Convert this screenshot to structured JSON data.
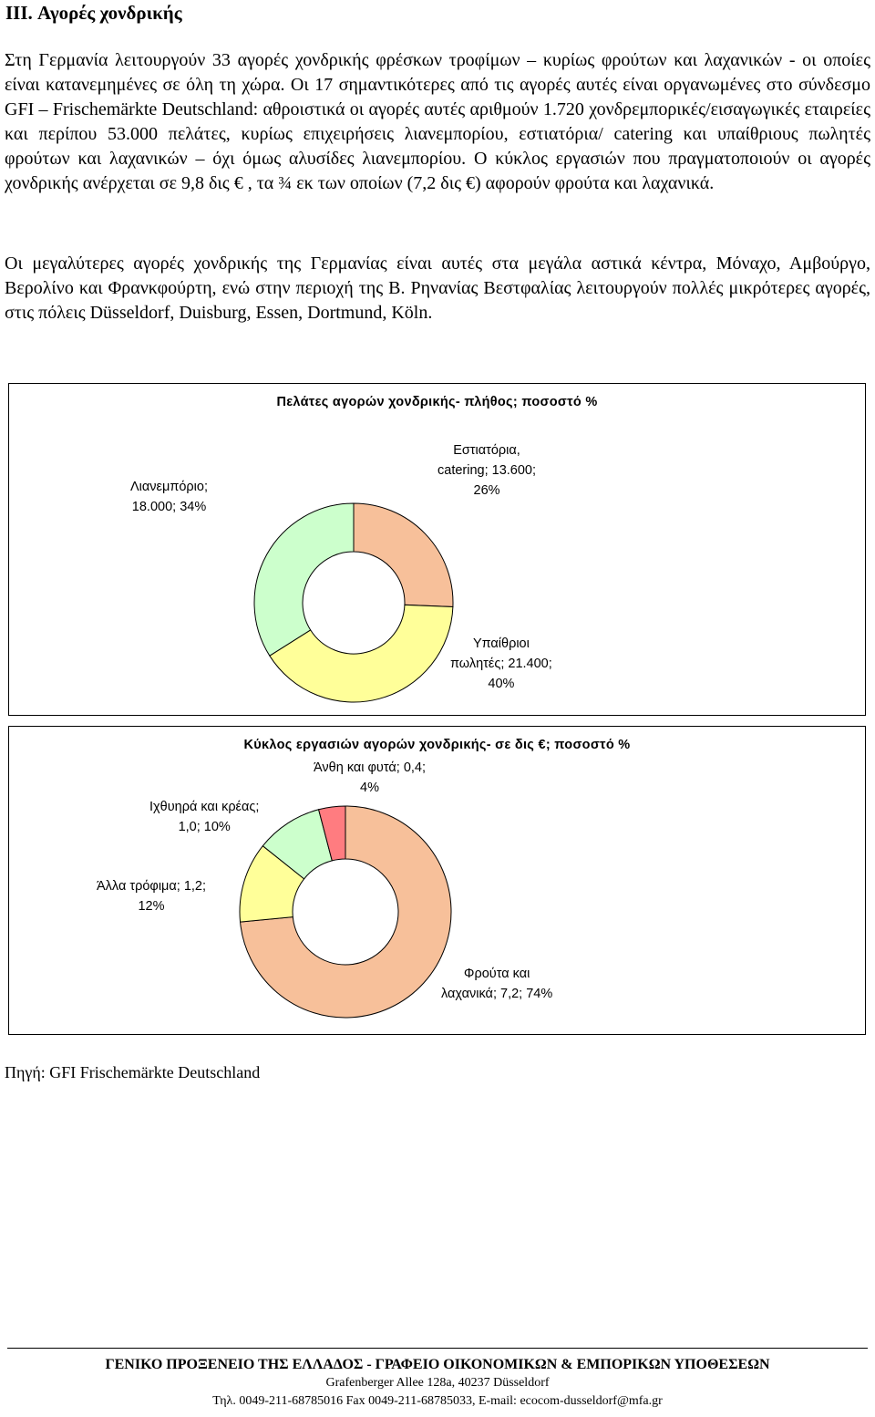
{
  "heading": "III. Αγορές χονδρικής",
  "paragraphs": [
    "Στη Γερμανία λειτουργούν 33 αγορές χονδρικής φρέσκων τροφίμων – κυρίως φρούτων και λαχανικών - οι οποίες είναι κατανεμημένες σε όλη τη χώρα. Οι 17 σημαντικότερες από τις αγορές αυτές είναι οργανωμένες στο σύνδεσμο GFI – Frischemärkte Deutschland: αθροιστικά οι αγορές αυτές αριθμούν 1.720 χονδρεμπορικές/εισαγωγικές εταιρείες και περίπου 53.000 πελάτες, κυρίως επιχειρήσεις λιανεμπορίου, εστιατόρια/ catering και υπαίθριους πωλητές φρούτων και λαχανικών – όχι όμως αλυσίδες λιανεμπορίου. Ο κύκλος εργασιών που πραγματοποιούν οι αγορές χονδρικής ανέρχεται σε 9,8 δις € , τα ¾ εκ των οποίων (7,2 δις €) αφορούν φρούτα και λαχανικά.",
    "Οι μεγαλύτερες αγορές χονδρικής της Γερμανίας είναι αυτές στα μεγάλα αστικά κέντρα, Μόναχο, Αμβούργο, Βερολίνο και Φρανκφούρτη, ενώ στην περιοχή της Β. Ρηνανίας Βεστφαλίας λειτουργούν πολλές μικρότερες αγορές, στις πόλεις Düsseldorf, Duisburg, Essen, Dortmund, Köln."
  ],
  "chart_data": [
    {
      "type": "pie",
      "variant": "donut",
      "title": "Πελάτες αγορών χονδρικής- πλήθος; ποσοστό %",
      "categories": [
        "Εστιατόρια, catering",
        "Υπαίθριοι πωλητές",
        "Λιανεμπόριο"
      ],
      "values": [
        13600,
        21400,
        18000
      ],
      "percentages": [
        26,
        40,
        34
      ],
      "colors": [
        "#F7C09A",
        "#FFFF99",
        "#CCFFCC"
      ],
      "labels": [
        [
          "Εστιατόρια,",
          "catering; 13.600;",
          "26%"
        ],
        [
          "Υπαίθριοι",
          "πωλητές; 21.400;",
          "40%"
        ],
        [
          "Λιανεμπόριο;",
          "18.000; 34%"
        ]
      ]
    },
    {
      "type": "pie",
      "variant": "donut",
      "title": "Κύκλος εργασιών αγορών χονδρικής- σε δις €; ποσοστό %",
      "categories": [
        "Φρούτα και λαχανικά",
        "Άλλα τρόφιμα",
        "Ιχθυηρά και κρέας",
        "Άνθη και φυτά"
      ],
      "values": [
        7.2,
        1.2,
        1.0,
        0.4
      ],
      "percentages": [
        74,
        12,
        10,
        4
      ],
      "colors": [
        "#F7C09A",
        "#FFFF99",
        "#CCFFCC",
        "#FF7C80"
      ],
      "labels": [
        [
          "Φρούτα και",
          "λαχανικά; 7,2; 74%"
        ],
        [
          "Άλλα τρόφιμα; 1,2;",
          "12%"
        ],
        [
          "Ιχθυηρά και κρέας;",
          "1,0; 10%"
        ],
        [
          "Άνθη και φυτά; 0,4;",
          "4%"
        ]
      ]
    }
  ],
  "source": "Πηγή: GFI Frischemärkte Deutschland",
  "footer": {
    "line1": "ΓΕΝΙΚΟ ΠΡΟΞΕΝΕΙΟ ΤΗΣ ΕΛΛΑΔΟΣ - ΓΡΑΦΕΙΟ ΟΙΚΟΝΟΜΙΚΩΝ & ΕΜΠΟΡΙΚΩΝ ΥΠΟΘΕΣΕΩΝ",
    "line2": "Grafenberger Allee 128a, 40237 Düsseldorf",
    "line3": "Τηλ. 0049-211-68785016 Fax 0049-211-68785033, E-mail: ecocom-dusseldorf@mfa.gr"
  }
}
